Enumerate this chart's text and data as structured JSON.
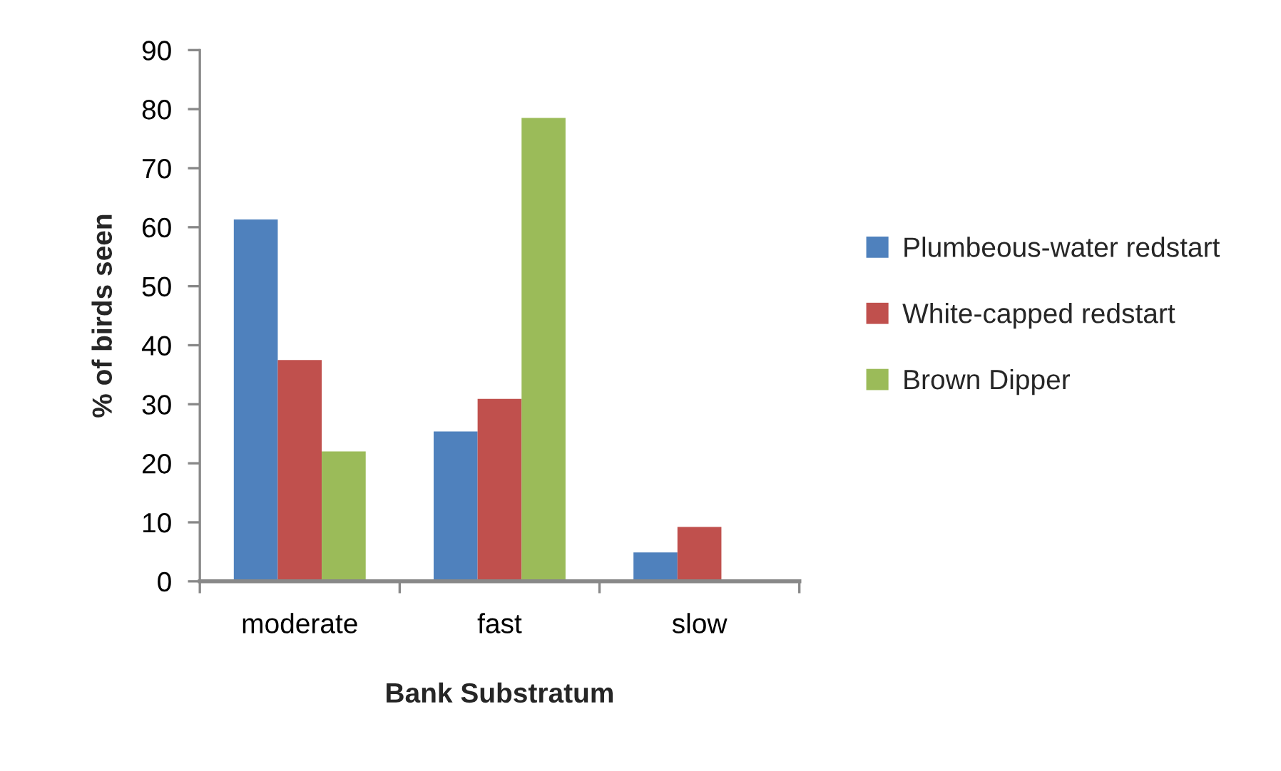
{
  "chart_data": {
    "type": "bar",
    "xlabel": "Bank Substratum",
    "ylabel": "% of birds seen",
    "categories": [
      "moderate",
      "fast",
      "slow"
    ],
    "series": [
      {
        "name": "Plumbeous-water redstart",
        "color": "#4f81bd",
        "values": [
          61.3,
          25.4,
          4.9
        ]
      },
      {
        "name": "White-capped redstart",
        "color": "#c0504d",
        "values": [
          37.5,
          30.9,
          9.2
        ]
      },
      {
        "name": "Brown Dipper",
        "color": "#9bbb59",
        "values": [
          22.0,
          78.5,
          0
        ]
      }
    ],
    "ylim": [
      0,
      90
    ],
    "yticks": [
      0,
      10,
      20,
      30,
      40,
      50,
      60,
      70,
      80,
      90
    ],
    "grid": false,
    "legend": "right"
  }
}
